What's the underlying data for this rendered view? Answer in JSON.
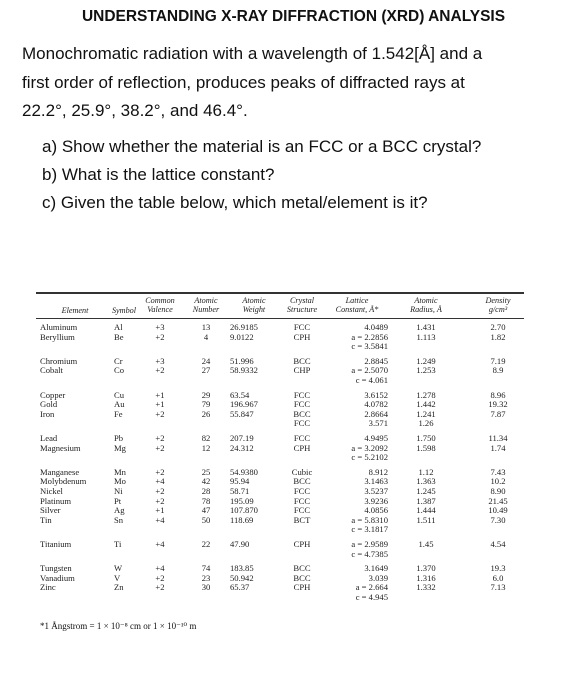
{
  "header": {
    "title": "UNDERSTANDING X-RAY DIFFRACTION (XRD) ANALYSIS"
  },
  "problem": {
    "lines": [
      "Monochromatic radiation with a wavelength of 1.542[Å] and a",
      "first order of reflection, produces peaks of diffracted rays at",
      "22.2°, 25.9°, 38.2°, and 46.4°."
    ]
  },
  "questions": [
    "a) Show whether the material is an FCC or a BCC crystal?",
    "b) What is the lattice constant?",
    "c) Given the table below, which metal/element is it?"
  ],
  "table": {
    "columns": [
      [
        "Element"
      ],
      [
        "Symbol"
      ],
      [
        "Common",
        "Valence"
      ],
      [
        "Atomic",
        "Number"
      ],
      [
        "Atomic",
        "Weight"
      ],
      [
        "Crystal",
        "Structure"
      ],
      [
        "Lattice",
        "Constant, Å*"
      ],
      [
        "Atomic",
        "Radius, Å"
      ],
      [
        "Density",
        "g/cm³"
      ]
    ],
    "groups": [
      [
        [
          "Aluminum",
          "Al",
          "+3",
          "13",
          "26.9185",
          "FCC",
          [
            "4.0489"
          ],
          "1.431",
          "2.70"
        ],
        [
          "Beryllium",
          "Be",
          "+2",
          "4",
          "9.0122",
          "CPH",
          [
            "a = 2.2856",
            "c = 3.5841"
          ],
          "1.113",
          "1.82"
        ]
      ],
      [
        [
          "Chromium",
          "Cr",
          "+3",
          "24",
          "51.996",
          "BCC",
          [
            "2.8845"
          ],
          "1.249",
          "7.19"
        ],
        [
          "Cobalt",
          "Co",
          "+2",
          "27",
          "58.9332",
          "CHP",
          [
            "a = 2.5070",
            "c = 4.061"
          ],
          "1.253",
          "8.9"
        ]
      ],
      [
        [
          "Copper",
          "Cu",
          "+1",
          "29",
          "63.54",
          "FCC",
          [
            "3.6152"
          ],
          "1.278",
          "8.96"
        ],
        [
          "Gold",
          "Au",
          "+1",
          "79",
          "196.967",
          "FCC",
          [
            "4.0782"
          ],
          "1.442",
          "19.32"
        ],
        [
          "Iron",
          "Fe",
          "+2",
          "26",
          "55.847",
          [
            "BCC",
            "FCC"
          ],
          [
            "2.8664",
            "3.571"
          ],
          [
            "1.241",
            "1.26"
          ],
          "7.87"
        ]
      ],
      [
        [
          "Lead",
          "Pb",
          "+2",
          "82",
          "207.19",
          "FCC",
          [
            "4.9495"
          ],
          "1.750",
          "11.34"
        ],
        [
          "Magnesium",
          "Mg",
          "+2",
          "12",
          "24.312",
          "CPH",
          [
            "a = 3.2092",
            "c = 5.2102"
          ],
          "1.598",
          "1.74"
        ]
      ],
      [
        [
          "Manganese",
          "Mn",
          "+2",
          "25",
          "54.9380",
          "Cubic",
          [
            "8.912"
          ],
          "1.12",
          "7.43"
        ],
        [
          "Molybdenum",
          "Mo",
          "+4",
          "42",
          "95.94",
          "BCC",
          [
            "3.1463"
          ],
          "1.363",
          "10.2"
        ],
        [
          "Nickel",
          "Ni",
          "+2",
          "28",
          "58.71",
          "FCC",
          [
            "3.5237"
          ],
          "1.245",
          "8.90"
        ],
        [
          "Platinum",
          "Pt",
          "+2",
          "78",
          "195.09",
          "FCC",
          [
            "3.9236"
          ],
          "1.387",
          "21.45"
        ],
        [
          "Silver",
          "Ag",
          "+1",
          "47",
          "107.870",
          "FCC",
          [
            "4.0856"
          ],
          "1.444",
          "10.49"
        ],
        [
          "Tin",
          "Sn",
          "+4",
          "50",
          "118.69",
          "BCT",
          [
            "a = 5.8310",
            "c = 3.1817"
          ],
          "1.511",
          "7.30"
        ]
      ],
      [
        [
          "Titanium",
          "Ti",
          "+4",
          "22",
          "47.90",
          "CPH",
          [
            "a = 2.9589",
            "c = 4.7385"
          ],
          "1.45",
          "4.54"
        ]
      ],
      [
        [
          "Tungsten",
          "W",
          "+4",
          "74",
          "183.85",
          "BCC",
          [
            "3.1649"
          ],
          "1.370",
          "19.3"
        ],
        [
          "Vanadium",
          "V",
          "+2",
          "23",
          "50.942",
          "BCC",
          [
            "3.039"
          ],
          "1.316",
          "6.0"
        ],
        [
          "Zinc",
          "Zn",
          "+2",
          "30",
          "65.37",
          "CPH",
          [
            "a = 2.664",
            "c = 4.945"
          ],
          "1.332",
          "7.13"
        ]
      ]
    ],
    "footnote": "*1 Ångstrom = 1 × 10⁻⁸ cm or 1 × 10⁻¹⁰ m"
  }
}
